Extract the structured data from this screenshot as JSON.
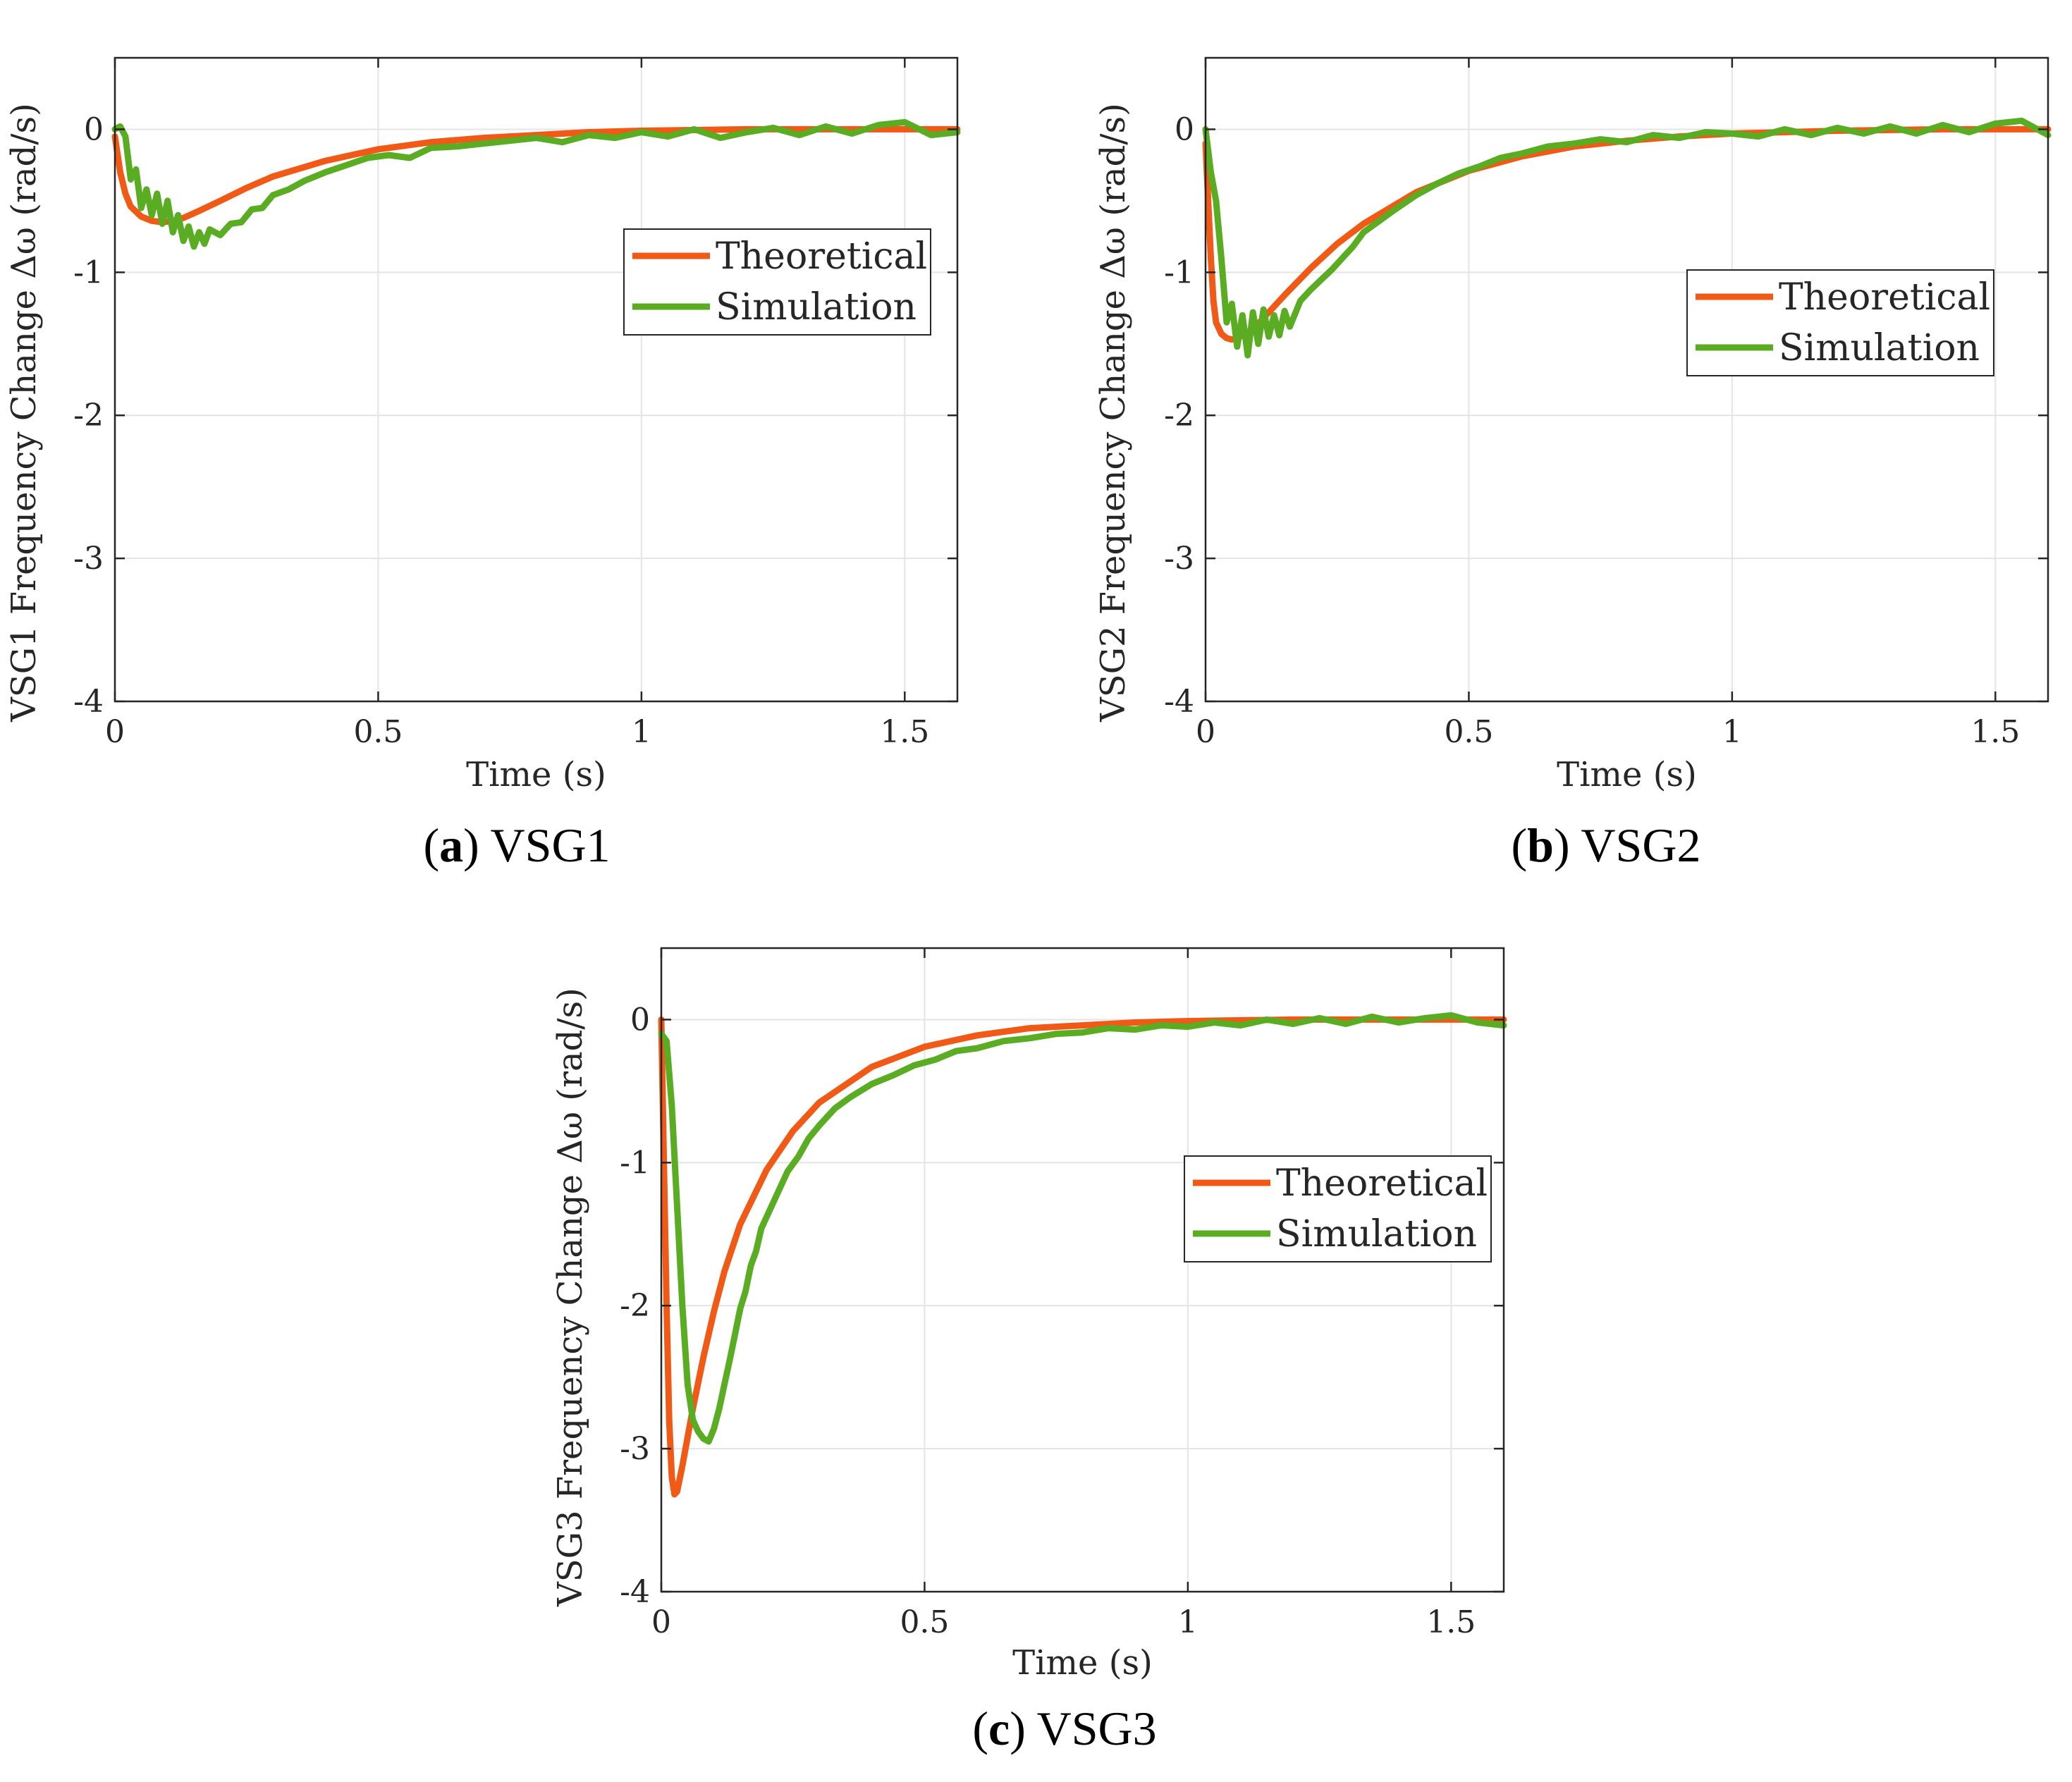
{
  "colors": {
    "theoretical": "#f05a16",
    "simulation": "#5aac22",
    "grid": "#e4e4e4",
    "axis": "#262626"
  },
  "chart_data": [
    {
      "type": "line",
      "title": "",
      "caption": {
        "open": "(",
        "letter": "a",
        "close": ")",
        "text": " VSG1"
      },
      "xlabel": "Time (s)",
      "ylabel": "VSG1 Frequency Change Δω (rad/s)",
      "xlim": [
        0,
        1.6
      ],
      "ylim": [
        -4,
        0.5
      ],
      "xticks": [
        0,
        0.5,
        1,
        1.5
      ],
      "xtick_labels": [
        "0",
        "0.5",
        "1",
        "1.5"
      ],
      "yticks": [
        0,
        -1,
        -2,
        -3,
        -4
      ],
      "ytick_labels": [
        "0",
        "-1",
        "-2",
        "-3",
        "-4"
      ],
      "grid": true,
      "legend_position": "top-right",
      "series": [
        {
          "name": "Theoretical",
          "x": [
            0,
            0.01,
            0.02,
            0.03,
            0.05,
            0.07,
            0.09,
            0.11,
            0.13,
            0.16,
            0.2,
            0.25,
            0.3,
            0.4,
            0.5,
            0.6,
            0.7,
            0.8,
            0.9,
            1.0,
            1.2,
            1.4,
            1.6
          ],
          "y": [
            -0.05,
            -0.3,
            -0.45,
            -0.54,
            -0.61,
            -0.64,
            -0.65,
            -0.64,
            -0.62,
            -0.57,
            -0.5,
            -0.41,
            -0.33,
            -0.22,
            -0.14,
            -0.09,
            -0.06,
            -0.04,
            -0.02,
            -0.01,
            0,
            0,
            0
          ]
        },
        {
          "name": "Simulation",
          "x": [
            0,
            0.01,
            0.02,
            0.03,
            0.04,
            0.05,
            0.06,
            0.07,
            0.08,
            0.09,
            0.1,
            0.11,
            0.12,
            0.13,
            0.14,
            0.15,
            0.16,
            0.17,
            0.18,
            0.2,
            0.22,
            0.24,
            0.26,
            0.28,
            0.3,
            0.33,
            0.36,
            0.4,
            0.44,
            0.48,
            0.52,
            0.56,
            0.6,
            0.65,
            0.7,
            0.75,
            0.8,
            0.85,
            0.9,
            0.95,
            1.0,
            1.05,
            1.1,
            1.15,
            1.2,
            1.25,
            1.3,
            1.35,
            1.4,
            1.45,
            1.5,
            1.55,
            1.6
          ],
          "y": [
            0,
            0.02,
            -0.05,
            -0.35,
            -0.28,
            -0.55,
            -0.42,
            -0.6,
            -0.45,
            -0.66,
            -0.5,
            -0.72,
            -0.6,
            -0.78,
            -0.68,
            -0.82,
            -0.72,
            -0.8,
            -0.7,
            -0.74,
            -0.66,
            -0.65,
            -0.56,
            -0.55,
            -0.46,
            -0.42,
            -0.36,
            -0.3,
            -0.25,
            -0.2,
            -0.18,
            -0.2,
            -0.13,
            -0.12,
            -0.1,
            -0.08,
            -0.06,
            -0.09,
            -0.04,
            -0.06,
            -0.02,
            -0.05,
            0,
            -0.06,
            -0.02,
            0.01,
            -0.04,
            0.02,
            -0.03,
            0.03,
            0.05,
            -0.04,
            -0.02
          ]
        }
      ]
    },
    {
      "type": "line",
      "title": "",
      "caption": {
        "open": "(",
        "letter": "b",
        "close": ")",
        "text": " VSG2"
      },
      "xlabel": "Time (s)",
      "ylabel": "VSG2 Frequency Change Δω (rad/s)",
      "xlim": [
        0,
        1.6
      ],
      "ylim": [
        -4,
        0.5
      ],
      "xticks": [
        0,
        0.5,
        1,
        1.5
      ],
      "xtick_labels": [
        "0",
        "0.5",
        "1",
        "1.5"
      ],
      "yticks": [
        0,
        -1,
        -2,
        -3,
        -4
      ],
      "ytick_labels": [
        "0",
        "-1",
        "-2",
        "-3",
        "-4"
      ],
      "grid": true,
      "legend_position": "top-right",
      "series": [
        {
          "name": "Theoretical",
          "x": [
            0,
            0.005,
            0.01,
            0.015,
            0.02,
            0.03,
            0.04,
            0.05,
            0.06,
            0.08,
            0.1,
            0.12,
            0.15,
            0.2,
            0.25,
            0.3,
            0.4,
            0.5,
            0.6,
            0.7,
            0.8,
            0.9,
            1.0,
            1.2,
            1.4,
            1.6
          ],
          "y": [
            -0.1,
            -0.5,
            -0.9,
            -1.2,
            -1.35,
            -1.43,
            -1.46,
            -1.47,
            -1.46,
            -1.42,
            -1.36,
            -1.28,
            -1.16,
            -0.97,
            -0.8,
            -0.66,
            -0.44,
            -0.29,
            -0.19,
            -0.12,
            -0.08,
            -0.05,
            -0.03,
            -0.01,
            0,
            0
          ]
        },
        {
          "name": "Simulation",
          "x": [
            0,
            0.01,
            0.02,
            0.03,
            0.04,
            0.05,
            0.06,
            0.07,
            0.08,
            0.09,
            0.1,
            0.11,
            0.12,
            0.13,
            0.14,
            0.15,
            0.16,
            0.18,
            0.2,
            0.22,
            0.24,
            0.26,
            0.28,
            0.3,
            0.33,
            0.36,
            0.4,
            0.44,
            0.48,
            0.52,
            0.56,
            0.6,
            0.65,
            0.7,
            0.75,
            0.8,
            0.85,
            0.9,
            0.95,
            1.0,
            1.05,
            1.1,
            1.15,
            1.2,
            1.25,
            1.3,
            1.35,
            1.4,
            1.45,
            1.5,
            1.55,
            1.6
          ],
          "y": [
            0,
            -0.3,
            -0.5,
            -0.9,
            -1.35,
            -1.22,
            -1.52,
            -1.3,
            -1.58,
            -1.28,
            -1.5,
            -1.26,
            -1.45,
            -1.3,
            -1.44,
            -1.27,
            -1.38,
            -1.2,
            -1.12,
            -1.05,
            -0.98,
            -0.9,
            -0.82,
            -0.72,
            -0.64,
            -0.56,
            -0.46,
            -0.38,
            -0.31,
            -0.26,
            -0.2,
            -0.17,
            -0.12,
            -0.1,
            -0.07,
            -0.09,
            -0.04,
            -0.06,
            -0.02,
            -0.03,
            -0.05,
            0,
            -0.04,
            0.01,
            -0.03,
            0.02,
            -0.03,
            0.03,
            -0.02,
            0.04,
            0.06,
            -0.04
          ]
        }
      ]
    },
    {
      "type": "line",
      "title": "",
      "caption": {
        "open": "(",
        "letter": "c",
        "close": ")",
        "text": " VSG3"
      },
      "xlabel": "Time (s)",
      "ylabel": "VSG3 Frequency Change Δω (rad/s)",
      "xlim": [
        0,
        1.6
      ],
      "ylim": [
        -4,
        0.5
      ],
      "xticks": [
        0,
        0.5,
        1,
        1.5
      ],
      "xtick_labels": [
        "0",
        "0.5",
        "1",
        "1.5"
      ],
      "yticks": [
        0,
        -1,
        -2,
        -3,
        -4
      ],
      "ytick_labels": [
        "0",
        "-1",
        "-2",
        "-3",
        "-4"
      ],
      "grid": true,
      "legend_position": "top-right",
      "series": [
        {
          "name": "Theoretical",
          "x": [
            0,
            0.005,
            0.01,
            0.015,
            0.02,
            0.025,
            0.03,
            0.04,
            0.05,
            0.06,
            0.08,
            0.1,
            0.12,
            0.15,
            0.2,
            0.25,
            0.3,
            0.4,
            0.5,
            0.6,
            0.7,
            0.8,
            0.9,
            1.0,
            1.2,
            1.4,
            1.6
          ],
          "y": [
            0,
            -1.0,
            -2.0,
            -2.8,
            -3.2,
            -3.32,
            -3.3,
            -3.12,
            -2.92,
            -2.72,
            -2.36,
            -2.04,
            -1.76,
            -1.43,
            -1.05,
            -0.78,
            -0.58,
            -0.33,
            -0.19,
            -0.11,
            -0.06,
            -0.04,
            -0.02,
            -0.01,
            0,
            0,
            0
          ]
        },
        {
          "name": "Simulation",
          "x": [
            0,
            0.01,
            0.02,
            0.03,
            0.04,
            0.05,
            0.06,
            0.07,
            0.08,
            0.09,
            0.1,
            0.11,
            0.12,
            0.13,
            0.14,
            0.15,
            0.16,
            0.17,
            0.18,
            0.19,
            0.2,
            0.22,
            0.24,
            0.26,
            0.28,
            0.3,
            0.33,
            0.36,
            0.4,
            0.44,
            0.48,
            0.52,
            0.56,
            0.6,
            0.65,
            0.7,
            0.75,
            0.8,
            0.85,
            0.9,
            0.95,
            1.0,
            1.05,
            1.1,
            1.15,
            1.2,
            1.25,
            1.3,
            1.35,
            1.4,
            1.45,
            1.5,
            1.55,
            1.6
          ],
          "y": [
            -0.1,
            -0.15,
            -0.6,
            -1.3,
            -2.0,
            -2.55,
            -2.8,
            -2.88,
            -2.93,
            -2.95,
            -2.86,
            -2.72,
            -2.55,
            -2.38,
            -2.2,
            -2.02,
            -1.9,
            -1.72,
            -1.62,
            -1.46,
            -1.38,
            -1.22,
            -1.06,
            -0.96,
            -0.83,
            -0.74,
            -0.62,
            -0.54,
            -0.45,
            -0.39,
            -0.32,
            -0.28,
            -0.22,
            -0.2,
            -0.15,
            -0.13,
            -0.1,
            -0.09,
            -0.06,
            -0.07,
            -0.04,
            -0.05,
            -0.02,
            -0.04,
            0,
            -0.03,
            0.01,
            -0.03,
            0.02,
            -0.02,
            0.01,
            0.03,
            -0.02,
            -0.04
          ]
        }
      ]
    }
  ]
}
